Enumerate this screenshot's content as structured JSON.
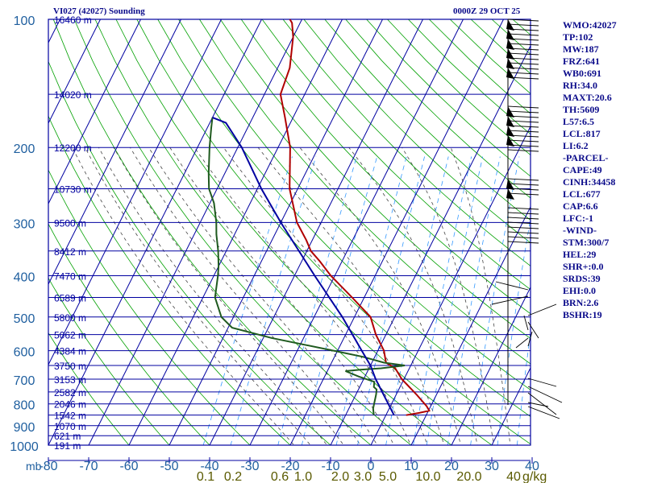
{
  "header": {
    "title": "VI027 (42027) Sounding",
    "datetime": "0000Z 29 OCT 25"
  },
  "chart_data": {
    "type": "line",
    "skew_t": true,
    "y_unit_label": "mb",
    "ylim": [
      1000,
      100
    ],
    "y_scale": "log",
    "xlim": [
      -80,
      40
    ],
    "pressure_ticks": [
      100,
      200,
      300,
      400,
      500,
      600,
      700,
      800,
      900,
      1000
    ],
    "temperature_ticks": [
      -80,
      -70,
      -60,
      -50,
      -40,
      -30,
      -20,
      -10,
      0,
      10,
      20,
      30,
      40
    ],
    "mixing_ratio_unit": "g/kg",
    "mixing_ratio_ticks": [
      "0.1",
      "0.2",
      "0.6",
      "1.0",
      "2.0",
      "3.0",
      "5.0",
      "10.0",
      "20.0",
      "40"
    ],
    "height_labels": [
      {
        "p": 100,
        "h": "16460 m"
      },
      {
        "p": 150,
        "h": "14020 m"
      },
      {
        "p": 200,
        "h": "12200 m"
      },
      {
        "p": 250,
        "h": "10730 m"
      },
      {
        "p": 300,
        "h": "9500 m"
      },
      {
        "p": 350,
        "h": "8412 m"
      },
      {
        "p": 400,
        "h": "7470 m"
      },
      {
        "p": 450,
        "h": "6589 m"
      },
      {
        "p": 500,
        "h": "5800 m"
      },
      {
        "p": 550,
        "h": "5062 m"
      },
      {
        "p": 600,
        "h": "4384 m"
      },
      {
        "p": 650,
        "h": "3750 m"
      },
      {
        "p": 700,
        "h": "3153 m"
      },
      {
        "p": 750,
        "h": "2582 m"
      },
      {
        "p": 800,
        "h": "2046 m"
      },
      {
        "p": 850,
        "h": "1542 m"
      },
      {
        "p": 900,
        "h": "1070 m"
      },
      {
        "p": 950,
        "h": "621 m"
      },
      {
        "p": 1000,
        "h": "191 m"
      }
    ],
    "series": [
      {
        "color": "#b00000",
        "points": [
          [
            850,
            5
          ],
          [
            840,
            8
          ],
          [
            830,
            10.2
          ],
          [
            810,
            9
          ],
          [
            760,
            5
          ],
          [
            700,
            -0.5
          ],
          [
            660,
            -3.5
          ],
          [
            640,
            -6.5
          ],
          [
            600,
            -8.5
          ],
          [
            550,
            -12.5
          ],
          [
            500,
            -16
          ],
          [
            450,
            -23
          ],
          [
            400,
            -31
          ],
          [
            370,
            -35.5
          ],
          [
            350,
            -39
          ],
          [
            330,
            -41.5
          ],
          [
            300,
            -46
          ],
          [
            250,
            -52
          ],
          [
            200,
            -57
          ],
          [
            170,
            -62
          ],
          [
            150,
            -66
          ],
          [
            130,
            -67
          ],
          [
            110,
            -70
          ],
          [
            102,
            -72
          ],
          [
            100,
            -73
          ]
        ]
      },
      {
        "color": "#1f5a1f",
        "points": [
          [
            850,
            -3
          ],
          [
            820,
            -4
          ],
          [
            760,
            -5
          ],
          [
            740,
            -5.5
          ],
          [
            730,
            -6.5
          ],
          [
            710,
            -7
          ],
          [
            690,
            -11.5
          ],
          [
            670,
            -15.5
          ],
          [
            665,
            -12
          ],
          [
            660,
            -7
          ],
          [
            650,
            -1.5
          ],
          [
            640,
            -7
          ],
          [
            620,
            -13
          ],
          [
            600,
            -21
          ],
          [
            560,
            -38
          ],
          [
            530,
            -49
          ],
          [
            500,
            -53
          ],
          [
            450,
            -57
          ],
          [
            400,
            -59
          ],
          [
            380,
            -60
          ],
          [
            350,
            -62
          ],
          [
            320,
            -64.5
          ],
          [
            300,
            -66
          ],
          [
            270,
            -69
          ],
          [
            250,
            -72
          ],
          [
            230,
            -74
          ],
          [
            200,
            -77
          ],
          [
            180,
            -79
          ],
          [
            170,
            -80
          ]
        ]
      },
      {
        "color": "#0000a0",
        "points": [
          [
            850,
            2
          ],
          [
            700,
            -7
          ],
          [
            650,
            -10
          ],
          [
            600,
            -14
          ],
          [
            500,
            -23
          ],
          [
            400,
            -35
          ],
          [
            300,
            -50
          ],
          [
            250,
            -59
          ],
          [
            200,
            -69
          ],
          [
            175,
            -76
          ],
          [
            170,
            -80
          ]
        ]
      }
    ]
  },
  "indices": [
    "WMO:42027",
    "TP:102",
    "MW:187",
    "FRZ:641",
    "WB0:691",
    "RH:34.0",
    "MAXT:20.6",
    "TH:5609",
    "L57:6.5",
    "LCL:817",
    "LI:6.2",
    "-PARCEL-",
    "CAPE:49",
    "CINH:34458",
    "LCL:677",
    "CAP:6.6",
    "LFC:-1",
    "-WIND-",
    "STM:300/7",
    "HEL:29",
    "SHR+:0.0",
    "SRDS:39",
    "EHI:0.0",
    "BRN:2.6",
    "BSHR:19"
  ],
  "colors": {
    "frame": "#0000a0",
    "dry_adiabat": "#00a000",
    "moist_adiabat": "#444444",
    "mixing_ratio": "#3399ff",
    "tick_text": "#1f5f9f",
    "mixing_text": "#5a5a00"
  }
}
